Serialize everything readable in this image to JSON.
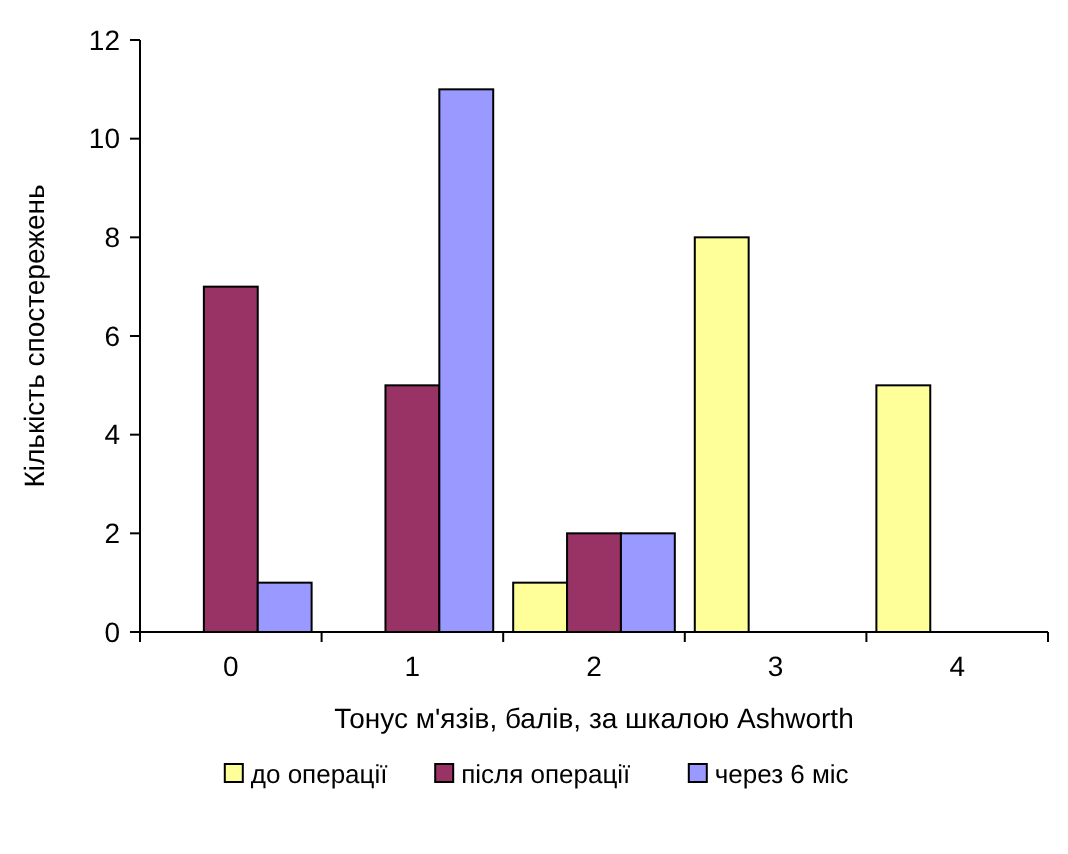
{
  "chart_data": {
    "type": "bar",
    "xlabel": "Тонус м'язів, балів, за шкалою Ashworth",
    "ylabel": "Кількість спостережень",
    "categories": [
      "0",
      "1",
      "2",
      "3",
      "4"
    ],
    "series": [
      {
        "name": "до операції",
        "color": "#ffff99",
        "values": [
          0,
          0,
          1,
          8,
          5
        ]
      },
      {
        "name": "після операції",
        "color": "#993366",
        "values": [
          7,
          5,
          2,
          0,
          0
        ]
      },
      {
        "name": "через 6 міс",
        "color": "#9999ff",
        "values": [
          1,
          11,
          2,
          0,
          0
        ]
      }
    ],
    "ylim": [
      0,
      12
    ],
    "yticks": [
      0,
      2,
      4,
      6,
      8,
      10,
      12
    ],
    "grid": false,
    "legend": "bottom"
  }
}
